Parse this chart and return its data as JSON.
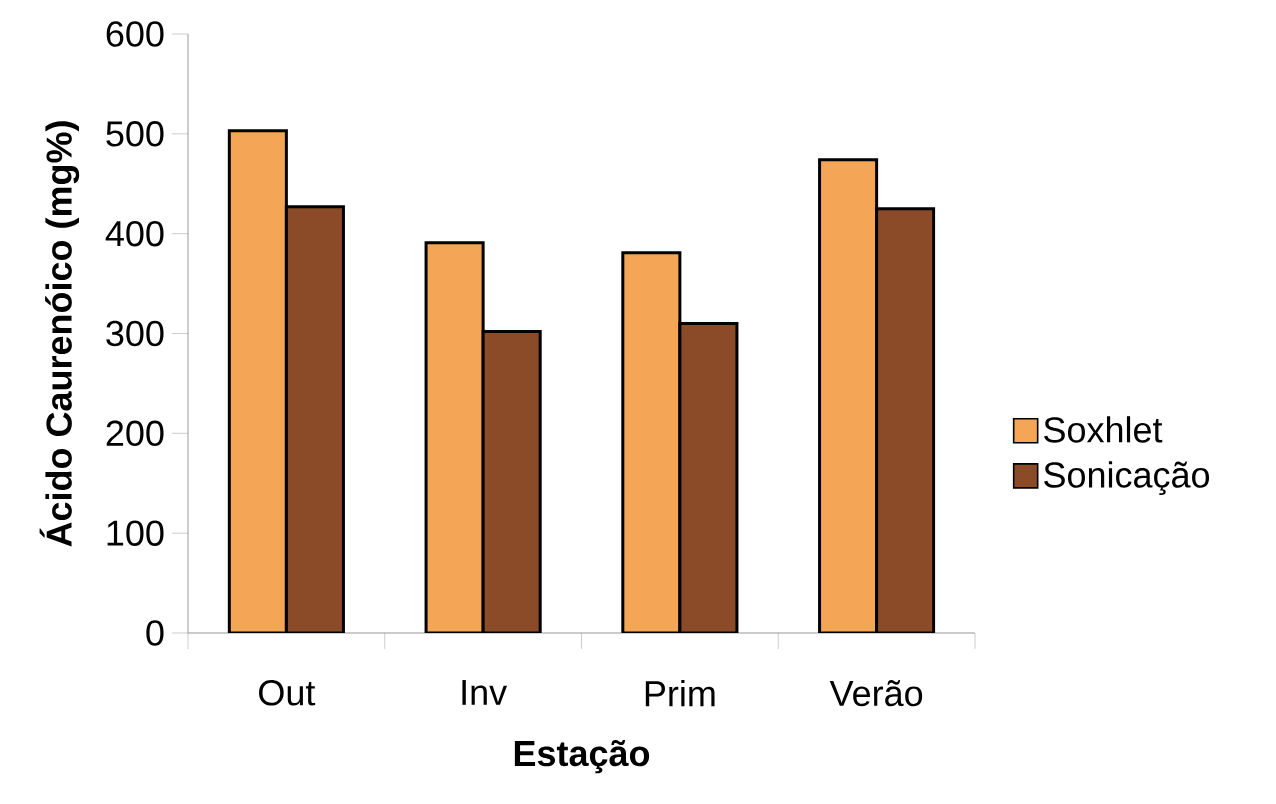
{
  "chart_data": {
    "type": "bar",
    "xlabel": "Estação",
    "ylabel": "Ácido Caurenóico (mg%)",
    "categories": [
      "Out",
      "Inv",
      "Prim",
      "Verão"
    ],
    "series": [
      {
        "name": "Soxhlet",
        "color": "#f4a556",
        "values": [
          503,
          391,
          381,
          474
        ]
      },
      {
        "name": "Sonicação",
        "color": "#8b4a28",
        "values": [
          427,
          302,
          310,
          425
        ]
      }
    ],
    "ylim": [
      0,
      600
    ],
    "yticks": [
      0,
      100,
      200,
      300,
      400,
      500,
      600
    ],
    "grid": false,
    "legend": "right"
  }
}
